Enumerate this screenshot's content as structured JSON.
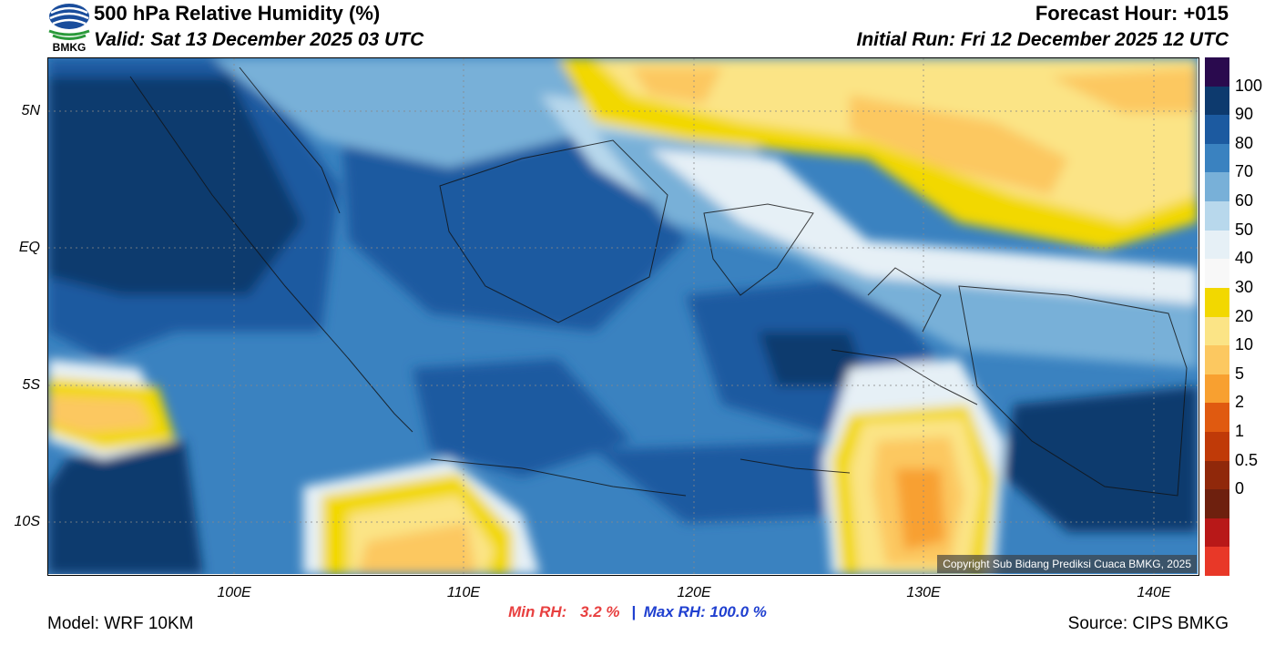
{
  "header": {
    "title": "500 hPa Relative Humidity (%)",
    "valid": "Valid: Sat 13 December 2025 03 UTC",
    "forecast_hour": "Forecast Hour: +015",
    "initial_run": "Initial Run: Fri 12 December 2025 12 UTC",
    "logo_text": "BMKG"
  },
  "axes": {
    "lat_labels": [
      "5N",
      "EQ",
      "5S",
      "10S"
    ],
    "lon_labels": [
      "100E",
      "110E",
      "120E",
      "130E",
      "140E"
    ]
  },
  "colorbar": {
    "labels": [
      "100",
      "90",
      "80",
      "70",
      "60",
      "50",
      "40",
      "30",
      "20",
      "10",
      "5",
      "2",
      "1",
      "0.5",
      "0"
    ],
    "colors": [
      "#2a0a4e",
      "#0d3a6e",
      "#1c5aa0",
      "#3a82c0",
      "#78b0d8",
      "#b8d8ec",
      "#e6f0f6",
      "#f8f8f8",
      "#f2d800",
      "#fbe486",
      "#fcc860",
      "#f8a030",
      "#e05a10",
      "#c03a08",
      "#90280a",
      "#6e200e",
      "#b81818",
      "#e83828"
    ]
  },
  "stats": {
    "min_label": "Min RH:",
    "min_value": "3.2 %",
    "separator": "|",
    "max_label": "Max RH: 100.0 %"
  },
  "footer": {
    "model": "Model: WRF 10KM",
    "source": "Source: CIPS BMKG",
    "copyright": "Copyright Sub Bidang Prediksi Cuaca BMKG, 2025"
  }
}
